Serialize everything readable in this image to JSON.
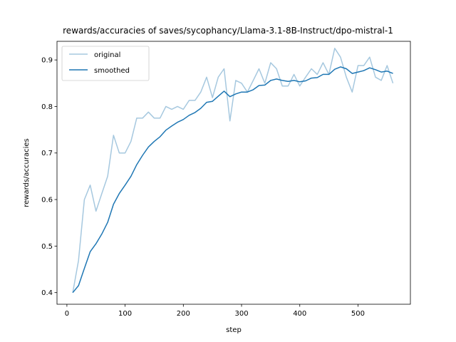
{
  "chart_data": {
    "type": "line",
    "title": "rewards/accuracies of saves/sycophancy/Llama-3.1-8B-Instruct/dpo-mistral-1",
    "xlabel": "step",
    "ylabel": "rewards/accuracies",
    "xlim": [
      -17,
      590
    ],
    "ylim": [
      0.375,
      0.94
    ],
    "xticks": [
      0,
      100,
      200,
      300,
      400,
      500
    ],
    "yticks": [
      0.4,
      0.5,
      0.6,
      0.7,
      0.8,
      0.9
    ],
    "legend_position": "upper left",
    "grid": false,
    "series": [
      {
        "name": "original",
        "color": "#a6c8df",
        "x": [
          10,
          20,
          30,
          40,
          50,
          60,
          70,
          80,
          90,
          100,
          110,
          120,
          130,
          140,
          150,
          160,
          170,
          180,
          190,
          200,
          210,
          220,
          230,
          240,
          250,
          260,
          270,
          280,
          290,
          300,
          310,
          320,
          330,
          340,
          350,
          360,
          370,
          380,
          390,
          400,
          410,
          420,
          430,
          440,
          450,
          460,
          470,
          480,
          490,
          500,
          510,
          520,
          530,
          540,
          550,
          560
        ],
        "y": [
          0.4,
          0.469,
          0.6,
          0.631,
          0.575,
          0.613,
          0.65,
          0.738,
          0.7,
          0.7,
          0.725,
          0.775,
          0.775,
          0.788,
          0.775,
          0.775,
          0.8,
          0.794,
          0.8,
          0.794,
          0.813,
          0.813,
          0.831,
          0.863,
          0.819,
          0.863,
          0.881,
          0.769,
          0.856,
          0.85,
          0.831,
          0.856,
          0.881,
          0.85,
          0.894,
          0.881,
          0.844,
          0.844,
          0.869,
          0.844,
          0.863,
          0.881,
          0.869,
          0.894,
          0.869,
          0.925,
          0.906,
          0.863,
          0.831,
          0.888,
          0.888,
          0.906,
          0.863,
          0.856,
          0.888,
          0.85
        ]
      },
      {
        "name": "smoothed",
        "color": "#1f77b4",
        "x": [
          10,
          20,
          30,
          40,
          50,
          60,
          70,
          80,
          90,
          100,
          110,
          120,
          130,
          140,
          150,
          160,
          170,
          180,
          190,
          200,
          210,
          220,
          230,
          240,
          250,
          260,
          270,
          280,
          290,
          300,
          310,
          320,
          330,
          340,
          350,
          360,
          370,
          380,
          390,
          400,
          410,
          420,
          430,
          440,
          450,
          460,
          470,
          480,
          490,
          500,
          510,
          520,
          530,
          540,
          550,
          560
        ],
        "y": [
          0.4,
          0.415,
          0.452,
          0.488,
          0.505,
          0.526,
          0.551,
          0.59,
          0.613,
          0.631,
          0.65,
          0.675,
          0.695,
          0.713,
          0.725,
          0.735,
          0.749,
          0.758,
          0.766,
          0.772,
          0.781,
          0.787,
          0.796,
          0.809,
          0.811,
          0.822,
          0.833,
          0.821,
          0.827,
          0.831,
          0.831,
          0.836,
          0.845,
          0.846,
          0.856,
          0.859,
          0.856,
          0.854,
          0.856,
          0.853,
          0.855,
          0.861,
          0.862,
          0.869,
          0.869,
          0.88,
          0.885,
          0.881,
          0.871,
          0.874,
          0.877,
          0.883,
          0.879,
          0.874,
          0.876,
          0.871
        ]
      }
    ]
  }
}
